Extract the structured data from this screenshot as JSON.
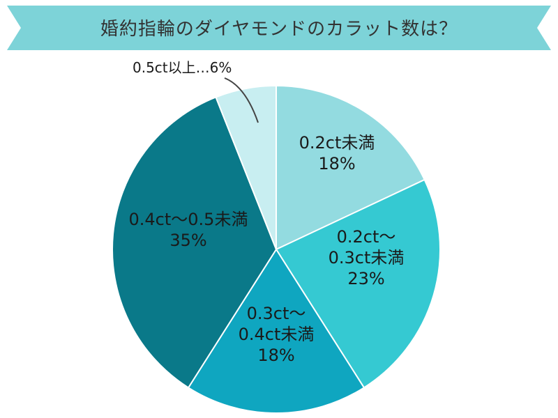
{
  "chart_data": {
    "type": "pie",
    "title": "婚約指輪のダイヤモンドのカラット数は？",
    "categories": [
      "0.2ct未満",
      "0.2ct〜0.3ct未満",
      "0.3ct〜0.4ct未満",
      "0.4ct〜0.5未満",
      "0.5ct以上"
    ],
    "values": [
      18,
      23,
      18,
      35,
      6
    ],
    "labels": [
      {
        "lines": [
          "0.2ct未満",
          "18%"
        ]
      },
      {
        "lines": [
          "0.2ct〜",
          "0.3ct未満",
          "23%"
        ]
      },
      {
        "lines": [
          "0.3ct〜",
          "0.4ct未満",
          "18%"
        ]
      },
      {
        "lines": [
          "0.4ct〜0.5未満",
          "35%"
        ]
      },
      {
        "lines": [
          "0.5ct以上…6%"
        ]
      }
    ],
    "colors": [
      "#93dbe0",
      "#35c9d2",
      "#0fa6c0",
      "#0a7989",
      "#c8eef1"
    ],
    "title_banner_color": "#7dd3d8"
  }
}
